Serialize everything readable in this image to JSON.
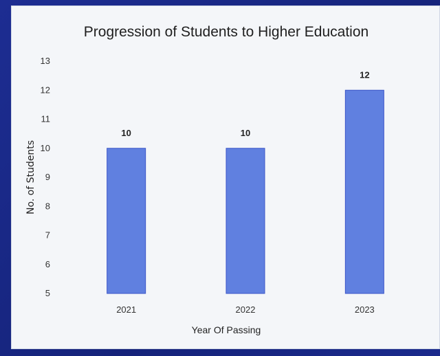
{
  "chart_data": {
    "type": "bar",
    "title": "Progression of Students to Higher Education",
    "xlabel": "Year Of Passing",
    "ylabel": "No. of Students",
    "categories": [
      "2021",
      "2022",
      "2023"
    ],
    "values": [
      10,
      10,
      12
    ],
    "ylim": [
      5,
      13
    ],
    "yticks": [
      5,
      6,
      7,
      8,
      9,
      10,
      11,
      12,
      13
    ],
    "grid": false,
    "legend": "none",
    "bar_color": "#6080e0",
    "bar_edge_color": "#3b55c8"
  }
}
